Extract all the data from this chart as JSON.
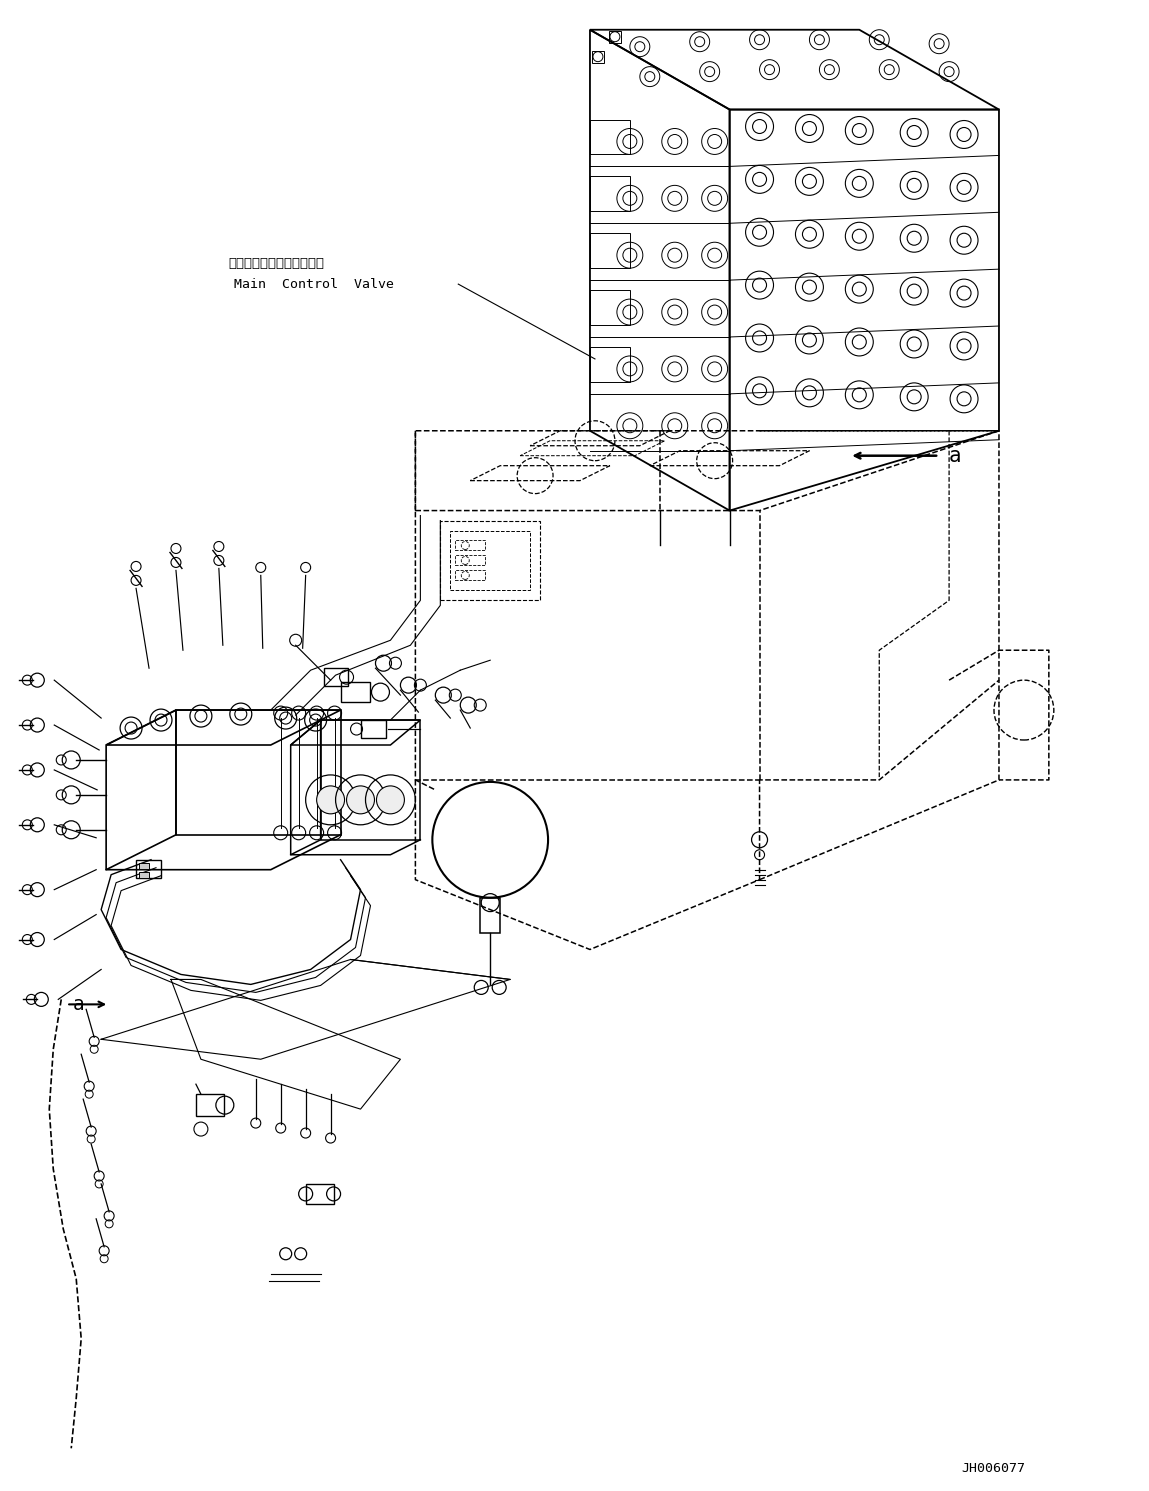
{
  "background_color": "#ffffff",
  "line_color": "#000000",
  "text_color": "#000000",
  "diagram_code": "JH006077",
  "label_a": "a",
  "label_main_control_valve_jp": "メインコントロールバルブ",
  "label_main_control_valve_en": "Main  Control  Valve",
  "figsize": [
    11.49,
    14.91
  ],
  "dpi": 100
}
